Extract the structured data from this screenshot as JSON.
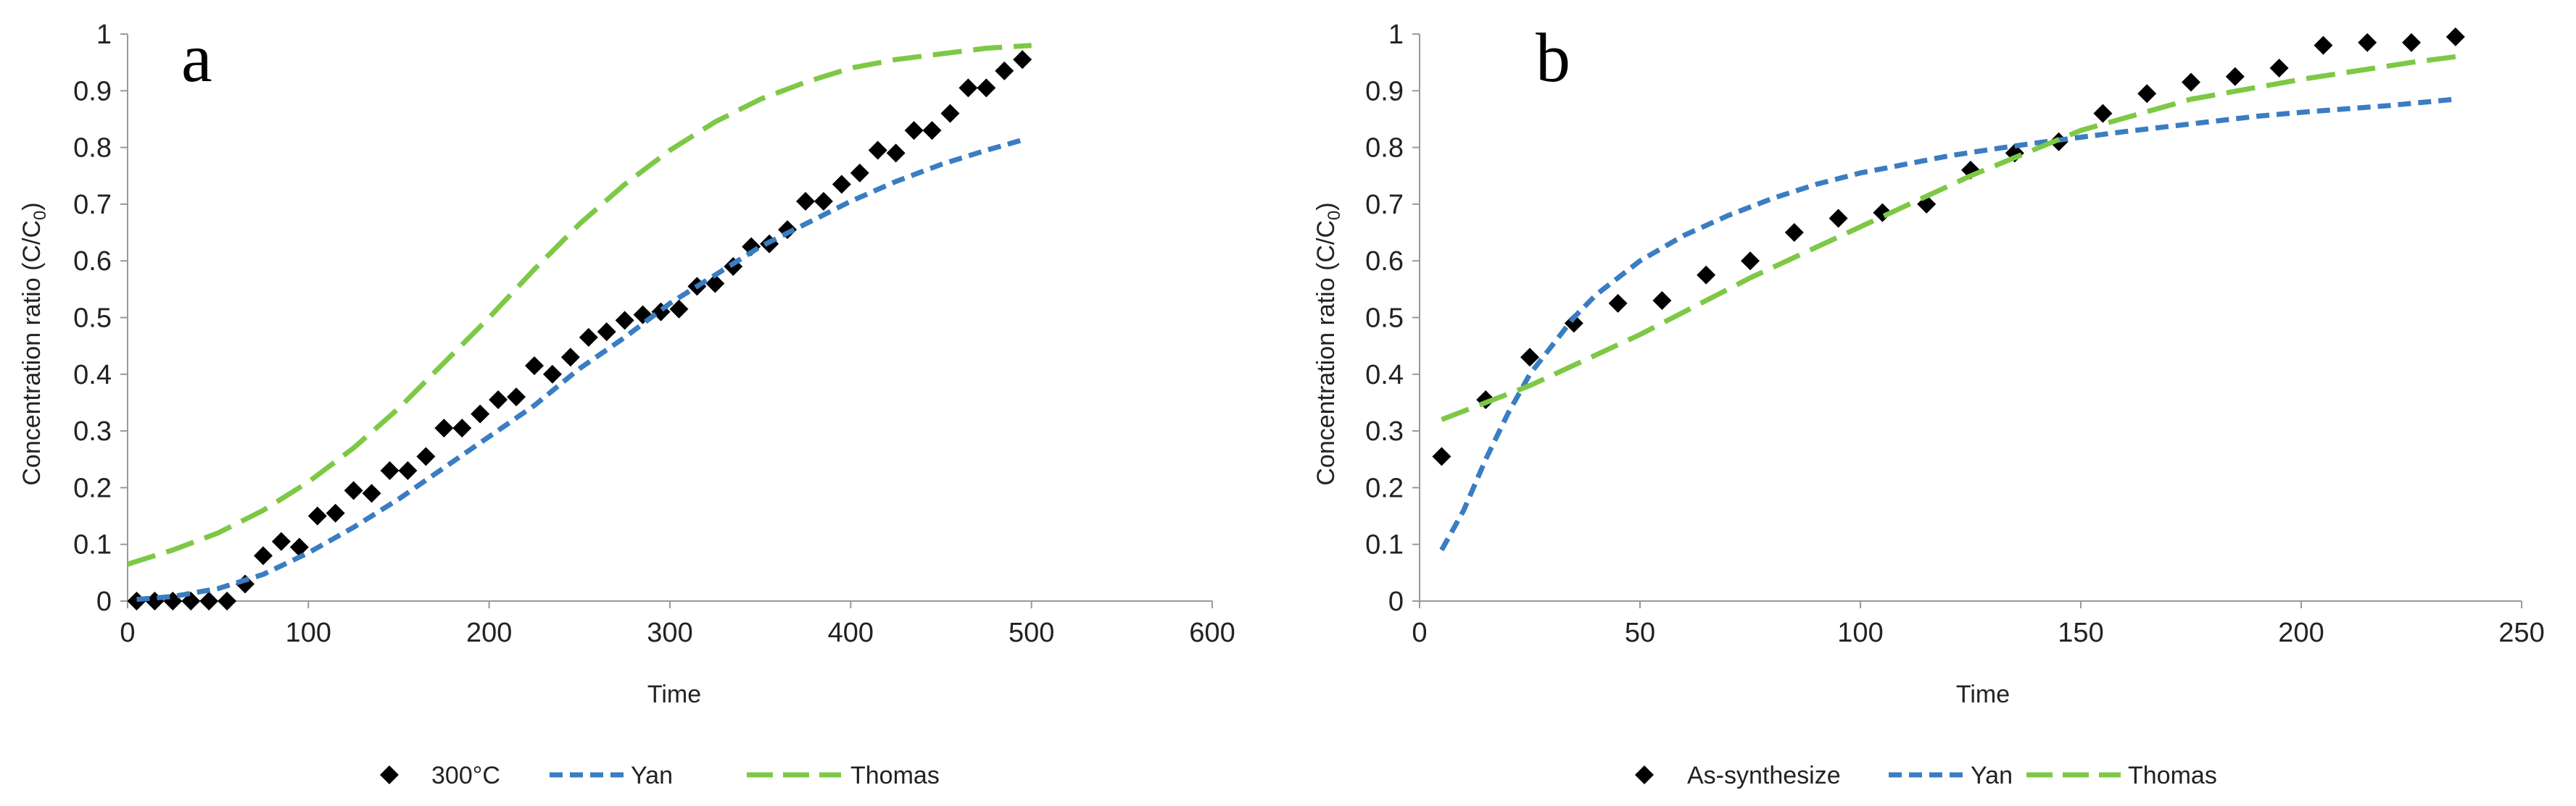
{
  "chart_data": [
    {
      "type": "scatter",
      "panel_label": "a",
      "xlabel": "Time",
      "ylabel": "Concentration ratio (C/C",
      "ylabel_sub": "0",
      "ylabel_suffix": ")",
      "xlim": [
        0,
        600
      ],
      "ylim": [
        0,
        1
      ],
      "xticks": [
        0,
        100,
        200,
        300,
        400,
        500,
        600
      ],
      "yticks": [
        0,
        0.1,
        0.2,
        0.3,
        0.4,
        0.5,
        0.6,
        0.7,
        0.8,
        0.9,
        1
      ],
      "ytick_labels": [
        "0",
        "0.1",
        "0.2",
        "0.3",
        "0.4",
        "0.5",
        "0.6",
        "0.7",
        "0.8",
        "0.9",
        "1"
      ],
      "legend_position": "bottom",
      "series": [
        {
          "name": "300°C",
          "kind": "markers",
          "color": "#000000",
          "x": [
            5,
            15,
            25,
            35,
            45,
            55,
            65,
            75,
            85,
            95,
            105,
            115,
            125,
            135,
            145,
            155,
            165,
            175,
            185,
            195,
            205,
            215,
            225,
            235,
            245,
            255,
            265,
            275,
            285,
            295,
            305,
            315,
            325,
            335,
            345,
            355,
            365,
            375,
            385,
            395,
            405,
            415,
            425,
            435,
            445,
            455,
            465,
            475,
            485,
            495
          ],
          "y": [
            0,
            0,
            0,
            0,
            0,
            0,
            0.03,
            0.08,
            0.105,
            0.095,
            0.15,
            0.155,
            0.195,
            0.19,
            0.23,
            0.23,
            0.255,
            0.305,
            0.305,
            0.33,
            0.355,
            0.36,
            0.415,
            0.4,
            0.43,
            0.465,
            0.475,
            0.495,
            0.505,
            0.51,
            0.515,
            0.555,
            0.56,
            0.59,
            0.625,
            0.63,
            0.655,
            0.705,
            0.705,
            0.735,
            0.755,
            0.795,
            0.79,
            0.83,
            0.83,
            0.86,
            0.905,
            0.905,
            0.935,
            0.955
          ]
        },
        {
          "name": "Yan",
          "kind": "dashed-line",
          "color": "#3a7dc2",
          "x": [
            5,
            25,
            50,
            75,
            100,
            125,
            150,
            175,
            200,
            225,
            250,
            275,
            300,
            325,
            350,
            375,
            400,
            425,
            450,
            475,
            497
          ],
          "y": [
            0.003,
            0.008,
            0.022,
            0.047,
            0.085,
            0.13,
            0.18,
            0.235,
            0.29,
            0.345,
            0.41,
            0.465,
            0.525,
            0.575,
            0.625,
            0.665,
            0.705,
            0.74,
            0.77,
            0.795,
            0.815
          ]
        },
        {
          "name": "Thomas",
          "kind": "long-dashed-line",
          "color": "#7dc845",
          "x": [
            0,
            25,
            50,
            75,
            100,
            125,
            150,
            175,
            200,
            225,
            250,
            275,
            300,
            325,
            350,
            375,
            400,
            425,
            450,
            475,
            500
          ],
          "y": [
            0.065,
            0.09,
            0.12,
            0.16,
            0.21,
            0.27,
            0.34,
            0.42,
            0.5,
            0.585,
            0.665,
            0.735,
            0.795,
            0.845,
            0.885,
            0.915,
            0.94,
            0.955,
            0.965,
            0.975,
            0.98
          ]
        }
      ]
    },
    {
      "type": "scatter",
      "panel_label": "b",
      "xlabel": "Time",
      "ylabel": "Concentration ratio (C/C",
      "ylabel_sub": "0",
      "ylabel_suffix": ")",
      "xlim": [
        0,
        250
      ],
      "ylim": [
        0,
        1
      ],
      "xticks": [
        0,
        50,
        100,
        150,
        200,
        250
      ],
      "yticks": [
        0,
        0.1,
        0.2,
        0.3,
        0.4,
        0.5,
        0.6,
        0.7,
        0.8,
        0.9,
        1
      ],
      "ytick_labels": [
        "0",
        "0.1",
        "0.2",
        "0.3",
        "0.4",
        "0.5",
        "0.6",
        "0.7",
        "0.8",
        "0.9",
        "1"
      ],
      "legend_position": "bottom",
      "series": [
        {
          "name": "As-synthesize",
          "kind": "markers",
          "color": "#000000",
          "x": [
            5,
            15,
            25,
            35,
            45,
            55,
            65,
            75,
            85,
            95,
            105,
            115,
            125,
            135,
            145,
            155,
            165,
            175,
            185,
            195,
            205,
            215,
            225,
            235
          ],
          "y": [
            0.255,
            0.355,
            0.43,
            0.49,
            0.525,
            0.53,
            0.575,
            0.6,
            0.65,
            0.675,
            0.685,
            0.7,
            0.76,
            0.79,
            0.81,
            0.86,
            0.895,
            0.915,
            0.925,
            0.94,
            0.98,
            0.985,
            0.985,
            0.995
          ]
        },
        {
          "name": "Yan",
          "kind": "dashed-line",
          "color": "#3a7dc2",
          "x": [
            5,
            10,
            15,
            20,
            25,
            30,
            35,
            40,
            50,
            60,
            70,
            80,
            90,
            100,
            110,
            120,
            130,
            140,
            150,
            160,
            170,
            180,
            190,
            200,
            210,
            220,
            235
          ],
          "y": [
            0.09,
            0.16,
            0.25,
            0.33,
            0.4,
            0.45,
            0.5,
            0.54,
            0.6,
            0.645,
            0.68,
            0.71,
            0.735,
            0.755,
            0.77,
            0.785,
            0.797,
            0.808,
            0.818,
            0.828,
            0.837,
            0.846,
            0.855,
            0.862,
            0.868,
            0.874,
            0.885
          ]
        },
        {
          "name": "Thomas",
          "kind": "long-dashed-line",
          "color": "#7dc845",
          "x": [
            5,
            25,
            50,
            75,
            100,
            125,
            150,
            175,
            200,
            225,
            235
          ],
          "y": [
            0.32,
            0.38,
            0.47,
            0.57,
            0.66,
            0.75,
            0.83,
            0.885,
            0.92,
            0.95,
            0.96
          ]
        }
      ]
    }
  ]
}
